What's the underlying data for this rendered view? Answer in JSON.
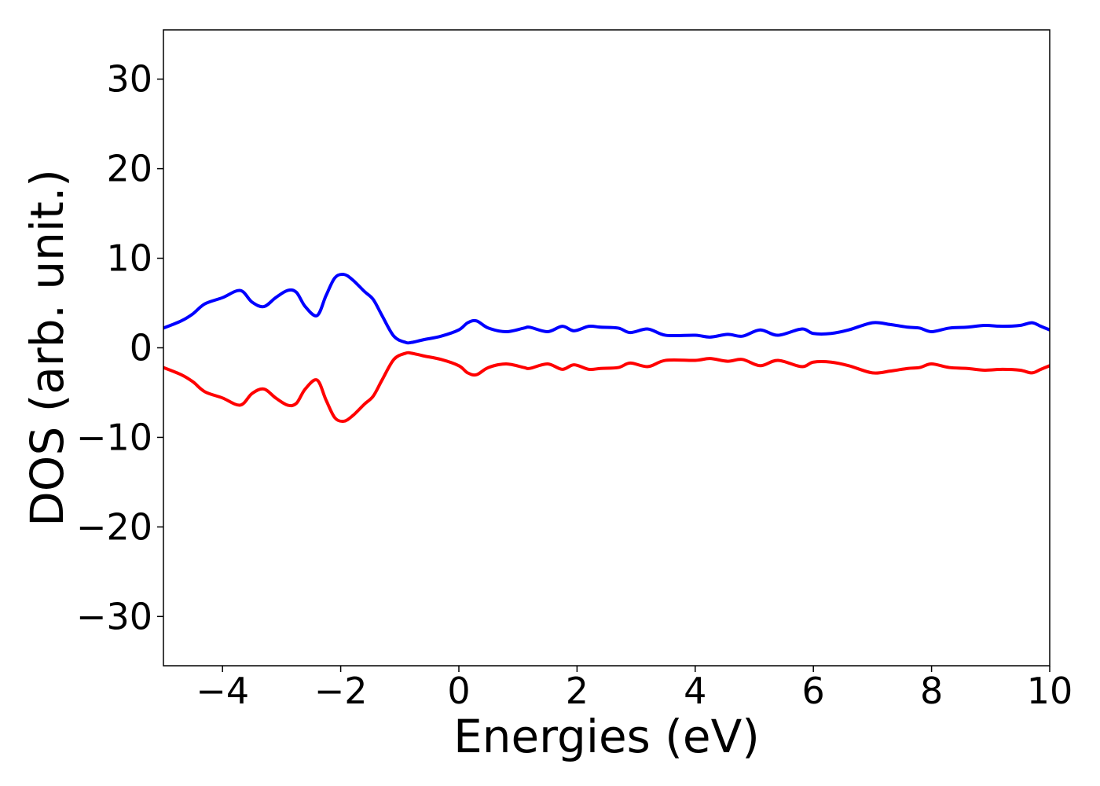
{
  "chart_data": {
    "type": "line",
    "title": "",
    "xlabel": "Energies (eV)",
    "ylabel": "DOS (arb. unit.)",
    "xlim": [
      -5,
      10
    ],
    "ylim": [
      -35.5,
      35.5
    ],
    "xticks": [
      -4,
      -2,
      0,
      2,
      4,
      6,
      8,
      10
    ],
    "yticks": [
      -30,
      -20,
      -10,
      0,
      10,
      20,
      30
    ],
    "xtick_labels": [
      "−4",
      "−2",
      "0",
      "2",
      "4",
      "6",
      "8",
      "10"
    ],
    "ytick_labels": [
      "−30",
      "−20",
      "−10",
      "0",
      "10",
      "20",
      "30"
    ],
    "grid": false,
    "legend": "none",
    "series": [
      {
        "color": "#0000ff",
        "x": [
          -5.0,
          -4.7,
          -4.5,
          -4.3,
          -4.0,
          -3.7,
          -3.5,
          -3.3,
          -3.1,
          -2.9,
          -2.75,
          -2.6,
          -2.4,
          -2.25,
          -2.1,
          -1.95,
          -1.8,
          -1.6,
          -1.45,
          -1.3,
          -1.1,
          -0.9,
          -0.8,
          -0.6,
          -0.3,
          0.0,
          0.15,
          0.3,
          0.5,
          0.8,
          1.1,
          1.2,
          1.5,
          1.75,
          1.95,
          2.2,
          2.4,
          2.7,
          2.9,
          3.2,
          3.5,
          4.0,
          4.25,
          4.55,
          4.8,
          5.1,
          5.4,
          5.8,
          6.0,
          6.3,
          6.6,
          7.0,
          7.3,
          7.6,
          7.8,
          8.0,
          8.3,
          8.6,
          8.9,
          9.2,
          9.5,
          9.7,
          9.85,
          10.0
        ],
        "y": [
          2.2,
          3.0,
          3.8,
          4.9,
          5.6,
          6.4,
          5.1,
          4.6,
          5.6,
          6.4,
          6.2,
          4.6,
          3.6,
          5.8,
          7.8,
          8.2,
          7.6,
          6.3,
          5.4,
          3.6,
          1.3,
          0.6,
          0.6,
          0.9,
          1.3,
          2.0,
          2.8,
          3.0,
          2.2,
          1.8,
          2.2,
          2.3,
          1.8,
          2.4,
          1.9,
          2.4,
          2.3,
          2.2,
          1.7,
          2.1,
          1.4,
          1.4,
          1.2,
          1.5,
          1.3,
          2.0,
          1.4,
          2.1,
          1.6,
          1.6,
          2.0,
          2.8,
          2.6,
          2.3,
          2.2,
          1.8,
          2.2,
          2.3,
          2.5,
          2.4,
          2.5,
          2.8,
          2.4,
          2.0
        ]
      },
      {
        "color": "#ff0000",
        "x": [
          -5.0,
          -4.7,
          -4.5,
          -4.3,
          -4.0,
          -3.7,
          -3.5,
          -3.3,
          -3.1,
          -2.9,
          -2.75,
          -2.6,
          -2.4,
          -2.25,
          -2.1,
          -1.95,
          -1.8,
          -1.6,
          -1.45,
          -1.3,
          -1.1,
          -0.9,
          -0.8,
          -0.6,
          -0.3,
          0.0,
          0.15,
          0.3,
          0.5,
          0.8,
          1.1,
          1.2,
          1.5,
          1.75,
          1.95,
          2.2,
          2.4,
          2.7,
          2.9,
          3.2,
          3.5,
          4.0,
          4.25,
          4.55,
          4.8,
          5.1,
          5.4,
          5.8,
          6.0,
          6.3,
          6.6,
          7.0,
          7.3,
          7.6,
          7.8,
          8.0,
          8.3,
          8.6,
          8.9,
          9.2,
          9.5,
          9.7,
          9.85,
          10.0
        ],
        "y": [
          -2.2,
          -3.0,
          -3.8,
          -4.9,
          -5.6,
          -6.4,
          -5.1,
          -4.6,
          -5.6,
          -6.4,
          -6.2,
          -4.6,
          -3.6,
          -5.8,
          -7.8,
          -8.2,
          -7.6,
          -6.3,
          -5.4,
          -3.6,
          -1.3,
          -0.6,
          -0.6,
          -0.9,
          -1.3,
          -2.0,
          -2.8,
          -3.0,
          -2.2,
          -1.8,
          -2.2,
          -2.3,
          -1.8,
          -2.4,
          -1.9,
          -2.4,
          -2.3,
          -2.2,
          -1.7,
          -2.1,
          -1.4,
          -1.4,
          -1.2,
          -1.5,
          -1.3,
          -2.0,
          -1.4,
          -2.1,
          -1.6,
          -1.6,
          -2.0,
          -2.8,
          -2.6,
          -2.3,
          -2.2,
          -1.8,
          -2.2,
          -2.3,
          -2.5,
          -2.4,
          -2.5,
          -2.8,
          -2.4,
          -2.0
        ]
      }
    ]
  }
}
